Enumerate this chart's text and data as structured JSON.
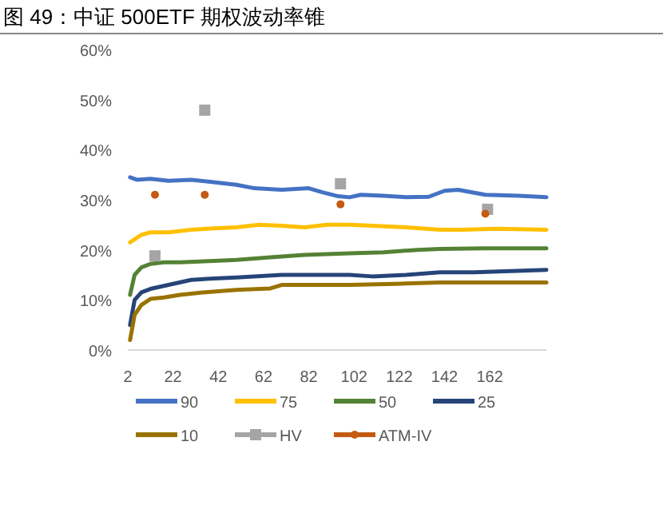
{
  "chart_data": {
    "type": "line",
    "title": "图 49：中证 500ETF 期权波动率锥",
    "xlim": [
      2,
      187
    ],
    "xticks": [
      2,
      22,
      42,
      62,
      82,
      102,
      122,
      142,
      162
    ],
    "ylim": [
      0,
      60
    ],
    "yticks": [
      {
        "value": 0,
        "label": "0%"
      },
      {
        "value": 10,
        "label": "10%"
      },
      {
        "value": 20,
        "label": "20%"
      },
      {
        "value": 30,
        "label": "30%"
      },
      {
        "value": 40,
        "label": "40%"
      },
      {
        "value": 50,
        "label": "50%"
      },
      {
        "value": 60,
        "label": "60%"
      }
    ],
    "grid": false,
    "legend": "bottom",
    "series": [
      {
        "name": "90",
        "color": "#4472c4",
        "x": [
          3,
          6,
          12,
          20,
          30,
          40,
          50,
          58,
          70,
          82,
          88,
          95,
          100,
          105,
          115,
          125,
          135,
          142,
          148,
          160,
          175,
          187
        ],
        "values": [
          34.5,
          34,
          34.2,
          33.8,
          34,
          33.5,
          33,
          32.3,
          32,
          32.3,
          31.5,
          30.7,
          30.5,
          31,
          30.8,
          30.5,
          30.6,
          31.8,
          32,
          31,
          30.8,
          30.5
        ]
      },
      {
        "name": "75",
        "color": "#ffc000",
        "x": [
          3,
          8,
          12,
          20,
          30,
          40,
          50,
          60,
          70,
          80,
          90,
          100,
          110,
          125,
          140,
          150,
          165,
          187
        ],
        "values": [
          21.5,
          23,
          23.5,
          23.5,
          24,
          24.3,
          24.5,
          25,
          24.8,
          24.5,
          25,
          25,
          24.8,
          24.5,
          24,
          24,
          24.2,
          24
        ]
      },
      {
        "name": "50",
        "color": "#548235",
        "x": [
          3,
          5,
          8,
          12,
          18,
          25,
          40,
          50,
          65,
          80,
          100,
          115,
          130,
          140,
          160,
          187
        ],
        "values": [
          11,
          15,
          16.5,
          17.2,
          17.5,
          17.5,
          17.8,
          18,
          18.5,
          19,
          19.3,
          19.5,
          20,
          20.2,
          20.3,
          20.3
        ]
      },
      {
        "name": "25",
        "color": "#264478",
        "x": [
          3,
          5,
          8,
          12,
          20,
          30,
          40,
          50,
          70,
          90,
          100,
          110,
          125,
          140,
          155,
          187
        ],
        "values": [
          5,
          10,
          11.5,
          12.2,
          13,
          14,
          14.3,
          14.5,
          15,
          15,
          15,
          14.7,
          15,
          15.5,
          15.5,
          16
        ]
      },
      {
        "name": "10",
        "color": "#997300",
        "x": [
          3,
          5,
          8,
          12,
          18,
          25,
          35,
          50,
          65,
          70,
          85,
          100,
          120,
          140,
          165,
          187
        ],
        "values": [
          2,
          7,
          9,
          10.2,
          10.5,
          11,
          11.5,
          12,
          12.3,
          13,
          13,
          13,
          13.2,
          13.5,
          13.5,
          13.5
        ]
      },
      {
        "name": "HV",
        "type": "scatter",
        "marker": "square",
        "color": "#a5a5a5",
        "x": [
          14,
          36,
          96,
          161
        ],
        "values": [
          18.8,
          47.9,
          33.2,
          28.1
        ]
      },
      {
        "name": "ATM-IV",
        "type": "scatter",
        "marker": "circle",
        "color": "#c55a11",
        "x": [
          14,
          36,
          96,
          160
        ],
        "values": [
          31,
          31,
          29.1,
          27.2
        ]
      }
    ]
  }
}
